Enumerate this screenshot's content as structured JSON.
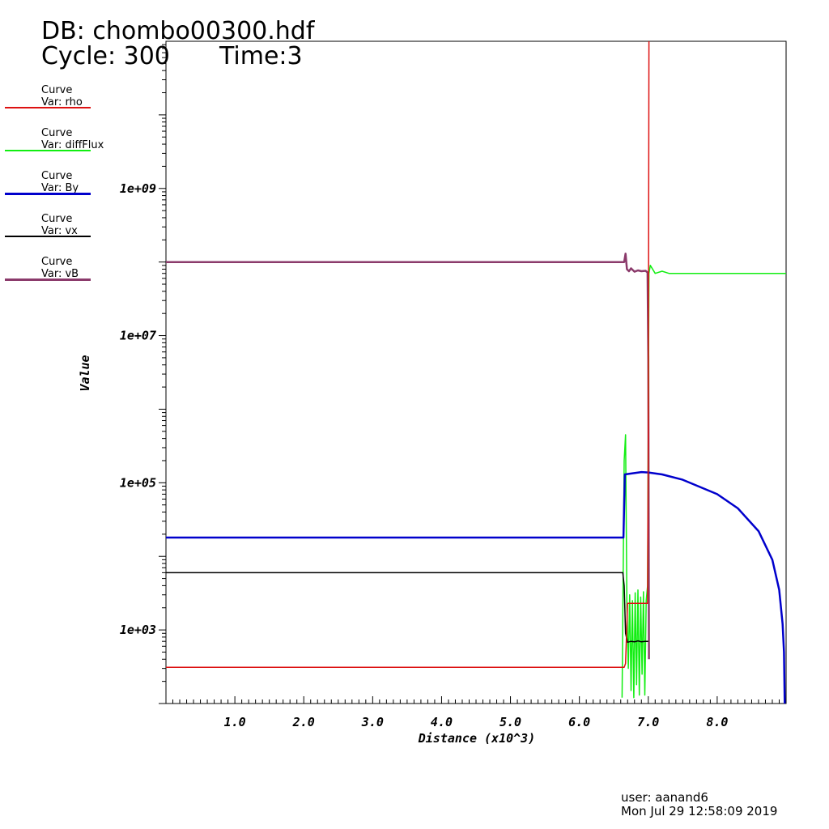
{
  "header": {
    "db": "DB: chombo00300.hdf",
    "cycle": "Cycle: 300",
    "time": "Time:3"
  },
  "legend": [
    {
      "label": "Curve",
      "var": "Var: rho",
      "color": "#dd1111"
    },
    {
      "label": "Curve",
      "var": "Var: diffFlux",
      "color": "#11ee11"
    },
    {
      "label": "Curve",
      "var": "Var: By",
      "color": "#0000cc"
    },
    {
      "label": "Curve",
      "var": "Var: vx",
      "color": "#000000"
    },
    {
      "label": "Curve",
      "var": "Var: vB",
      "color": "#8b3a6b"
    }
  ],
  "footer": {
    "user": "user: aanand6",
    "date": "Mon Jul 29 12:58:09 2019"
  },
  "chart_data": {
    "type": "line",
    "xlabel": "Distance (x10^3)",
    "ylabel": "Value",
    "xlim": [
      0,
      9.0
    ],
    "ylim": [
      100,
      100000000000
    ],
    "yscale": "log",
    "x_ticks": [
      "1.0",
      "2.0",
      "3.0",
      "4.0",
      "5.0",
      "6.0",
      "7.0",
      "8.0"
    ],
    "y_ticks": [
      "1e+03",
      "1e+05",
      "1e+07",
      "1e+09"
    ],
    "series": [
      {
        "name": "rho",
        "color": "#dd1111",
        "points": [
          [
            0,
            310
          ],
          [
            6.65,
            310
          ],
          [
            6.67,
            350
          ],
          [
            6.7,
            2300
          ],
          [
            6.75,
            2300
          ],
          [
            6.95,
            2300
          ],
          [
            6.99,
            2300
          ],
          [
            7.0,
            500000
          ],
          [
            7.01,
            100000000000
          ]
        ]
      },
      {
        "name": "diffFlux",
        "color": "#11ee11",
        "points": [
          [
            6.62,
            120
          ],
          [
            6.65,
            200000
          ],
          [
            6.67,
            450000
          ],
          [
            6.69,
            2000
          ],
          [
            6.71,
            300
          ],
          [
            6.73,
            3000
          ],
          [
            6.75,
            150
          ],
          [
            6.77,
            2500
          ],
          [
            6.79,
            120
          ],
          [
            6.81,
            3200
          ],
          [
            6.83,
            180
          ],
          [
            6.85,
            3500
          ],
          [
            6.87,
            130
          ],
          [
            6.89,
            2800
          ],
          [
            6.91,
            250
          ],
          [
            6.93,
            3300
          ],
          [
            6.95,
            130
          ],
          [
            6.97,
            2500
          ],
          [
            6.99,
            4000
          ],
          [
            7.01,
            70000000
          ],
          [
            7.03,
            90000000
          ],
          [
            7.1,
            70000000
          ],
          [
            7.2,
            75000000
          ],
          [
            7.3,
            70000000
          ],
          [
            9.0,
            70000000
          ]
        ]
      },
      {
        "name": "By",
        "color": "#0000cc",
        "points": [
          [
            0,
            18000
          ],
          [
            6.64,
            18000
          ],
          [
            6.66,
            130000
          ],
          [
            6.9,
            140000
          ],
          [
            7.0,
            138000
          ],
          [
            7.2,
            130000
          ],
          [
            7.5,
            110000
          ],
          [
            8.0,
            70000
          ],
          [
            8.3,
            45000
          ],
          [
            8.6,
            22000
          ],
          [
            8.8,
            9000
          ],
          [
            8.9,
            3500
          ],
          [
            8.95,
            1200
          ],
          [
            8.97,
            500
          ],
          [
            8.98,
            100
          ]
        ]
      },
      {
        "name": "vx",
        "color": "#000000",
        "points": [
          [
            0,
            6000
          ],
          [
            6.63,
            6000
          ],
          [
            6.65,
            4000
          ],
          [
            6.67,
            900
          ],
          [
            6.7,
            680
          ],
          [
            6.75,
            700
          ],
          [
            6.8,
            690
          ],
          [
            6.85,
            710
          ],
          [
            6.9,
            690
          ],
          [
            6.95,
            700
          ],
          [
            7.0,
            700
          ]
        ]
      },
      {
        "name": "vB",
        "color": "#8b3a6b",
        "points": [
          [
            0,
            100000000
          ],
          [
            6.65,
            100000000
          ],
          [
            6.67,
            130000000
          ],
          [
            6.69,
            80000000
          ],
          [
            6.72,
            75000000
          ],
          [
            6.75,
            82000000
          ],
          [
            6.8,
            74000000
          ],
          [
            6.85,
            77000000
          ],
          [
            6.9,
            75000000
          ],
          [
            6.96,
            76000000
          ],
          [
            6.99,
            72000000
          ],
          [
            7.0,
            5000000
          ],
          [
            7.01,
            400
          ]
        ]
      }
    ]
  }
}
